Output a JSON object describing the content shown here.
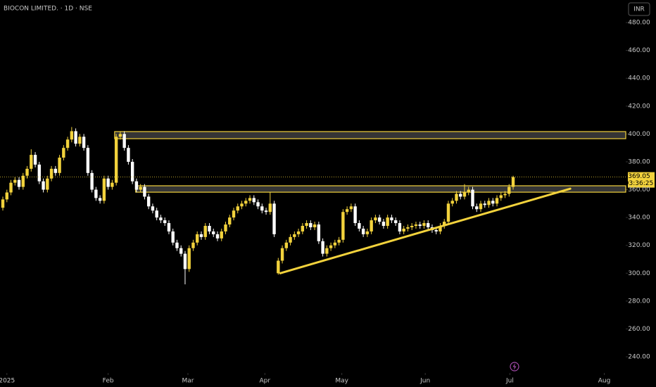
{
  "chart_data": {
    "type": "candlestick",
    "title": "BIOCON LIMITED. · 1D · NSE",
    "currency": "INR",
    "up_color": "#f2d23c",
    "down_color": "#ffffff",
    "open": [
      347,
      353,
      358,
      365,
      367,
      362,
      370,
      375,
      385,
      378,
      366,
      360,
      368,
      375,
      372,
      383,
      390,
      396,
      402,
      393,
      398,
      390,
      372,
      360,
      354,
      352,
      368,
      362,
      365,
      398,
      400,
      390,
      380,
      366,
      360,
      362,
      355,
      348,
      345,
      340,
      338,
      336,
      330,
      322,
      318,
      314,
      303,
      318,
      322,
      328,
      326,
      334,
      330,
      328,
      325,
      330,
      335,
      340,
      345,
      348,
      350,
      352,
      354,
      351,
      348,
      345,
      344,
      350,
      300,
      309,
      318,
      322,
      326,
      328,
      330,
      334,
      336,
      333,
      335,
      323,
      314,
      318,
      320,
      322,
      324,
      344,
      346,
      348,
      336,
      332,
      328,
      330,
      338,
      340,
      337,
      334,
      340,
      338,
      336,
      330,
      332,
      333,
      334,
      335,
      334,
      336,
      333,
      331,
      330,
      334,
      337,
      350,
      352,
      357,
      355,
      358,
      360,
      348,
      346,
      350,
      349,
      352,
      350,
      354,
      356,
      357,
      362
    ],
    "high": [
      355,
      360,
      367,
      369,
      369,
      372,
      377,
      389,
      387,
      380,
      368,
      370,
      377,
      377,
      385,
      392,
      398,
      405,
      404,
      400,
      400,
      392,
      374,
      362,
      356,
      370,
      370,
      367,
      400,
      402,
      402,
      392,
      382,
      368,
      364,
      364,
      357,
      350,
      347,
      342,
      340,
      338,
      332,
      324,
      320,
      316,
      320,
      324,
      330,
      330,
      336,
      336,
      332,
      330,
      332,
      337,
      342,
      347,
      350,
      352,
      354,
      356,
      356,
      353,
      350,
      347,
      358,
      352,
      311,
      320,
      324,
      328,
      330,
      332,
      336,
      338,
      338,
      337,
      337,
      325,
      320,
      322,
      324,
      326,
      346,
      348,
      350,
      350,
      338,
      334,
      332,
      340,
      342,
      342,
      339,
      342,
      342,
      340,
      338,
      334,
      335,
      336,
      337,
      337,
      338,
      338,
      335,
      333,
      336,
      339,
      352,
      354,
      359,
      359,
      364,
      362,
      362,
      350,
      352,
      352,
      354,
      354,
      356,
      358,
      359,
      364,
      370
    ],
    "low": [
      345,
      351,
      356,
      363,
      360,
      360,
      368,
      373,
      376,
      364,
      358,
      358,
      366,
      370,
      370,
      381,
      388,
      394,
      391,
      391,
      388,
      370,
      358,
      352,
      350,
      350,
      360,
      360,
      363,
      396,
      388,
      378,
      364,
      358,
      358,
      353,
      346,
      343,
      338,
      336,
      334,
      328,
      320,
      316,
      312,
      292,
      301,
      316,
      320,
      324,
      324,
      328,
      326,
      323,
      323,
      328,
      333,
      338,
      343,
      346,
      348,
      350,
      349,
      346,
      343,
      342,
      342,
      326,
      299,
      307,
      316,
      320,
      324,
      326,
      328,
      332,
      331,
      331,
      321,
      312,
      312,
      316,
      318,
      320,
      322,
      342,
      344,
      334,
      330,
      326,
      326,
      328,
      336,
      335,
      332,
      332,
      336,
      334,
      328,
      328,
      330,
      331,
      332,
      332,
      332,
      331,
      329,
      328,
      328,
      332,
      335,
      348,
      350,
      353,
      353,
      356,
      346,
      344,
      344,
      347,
      347,
      348,
      348,
      352,
      354,
      355,
      360
    ],
    "close": [
      353,
      358,
      365,
      367,
      362,
      370,
      375,
      385,
      378,
      366,
      360,
      368,
      375,
      372,
      383,
      390,
      396,
      402,
      393,
      398,
      390,
      372,
      360,
      354,
      352,
      368,
      362,
      365,
      398,
      400,
      390,
      380,
      366,
      360,
      362,
      355,
      348,
      345,
      340,
      338,
      336,
      330,
      322,
      318,
      314,
      303,
      318,
      322,
      328,
      326,
      334,
      330,
      328,
      325,
      330,
      335,
      340,
      345,
      348,
      350,
      352,
      354,
      351,
      348,
      345,
      344,
      350,
      328,
      309,
      318,
      322,
      326,
      328,
      330,
      334,
      336,
      333,
      335,
      323,
      314,
      318,
      320,
      322,
      324,
      344,
      346,
      348,
      336,
      332,
      328,
      330,
      338,
      340,
      337,
      334,
      340,
      338,
      336,
      330,
      332,
      333,
      334,
      335,
      334,
      336,
      333,
      331,
      330,
      334,
      337,
      350,
      352,
      357,
      355,
      358,
      360,
      348,
      346,
      350,
      349,
      352,
      350,
      354,
      356,
      357,
      362,
      369.05
    ],
    "last_price": 369.05,
    "countdown": "03:36:25",
    "ylim": [
      228.4,
      496.2
    ],
    "yticks": [
      {
        "value": 240,
        "label": "240.00"
      },
      {
        "value": 260,
        "label": "260.00"
      },
      {
        "value": 280,
        "label": "280.00"
      },
      {
        "value": 300,
        "label": "300.00"
      },
      {
        "value": 320,
        "label": "320.00"
      },
      {
        "value": 340,
        "label": "340.00"
      },
      {
        "value": 360,
        "label": "360.00"
      },
      {
        "value": 380,
        "label": "380.00"
      },
      {
        "value": 400,
        "label": "400.00"
      },
      {
        "value": 420,
        "label": "420.00"
      },
      {
        "value": 440,
        "label": "440.00"
      },
      {
        "value": 460,
        "label": "460.00"
      },
      {
        "value": 480,
        "label": "480.00"
      }
    ],
    "xlim": [
      -0.7,
      153.8
    ],
    "xticks": [
      {
        "value": 1,
        "label": "2025"
      },
      {
        "value": 26,
        "label": "Feb"
      },
      {
        "value": 45.7,
        "label": "Mar"
      },
      {
        "value": 64.7,
        "label": "Apr"
      },
      {
        "value": 83.7,
        "label": "May"
      },
      {
        "value": 104.3,
        "label": "Jun"
      },
      {
        "value": 125.2,
        "label": "Jul"
      },
      {
        "value": 148.5,
        "label": "Aug"
      }
    ],
    "zones": [
      {
        "from": 396.6,
        "to": 401.7,
        "start": 27.6
      },
      {
        "from": 358.2,
        "to": 362.8,
        "start": 32.8
      }
    ],
    "trendline": {
      "x": [
        68.5,
        140.1
      ],
      "y": [
        300,
        360.7
      ]
    }
  }
}
